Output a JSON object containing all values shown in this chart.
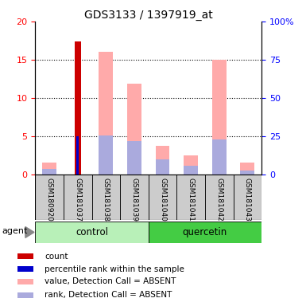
{
  "title": "GDS3133 / 1397919_at",
  "samples": [
    "GSM180920",
    "GSM181037",
    "GSM181038",
    "GSM181039",
    "GSM181040",
    "GSM181041",
    "GSM181042",
    "GSM181043"
  ],
  "count_values": [
    0,
    17.4,
    0,
    0,
    0,
    0,
    0,
    0
  ],
  "percentile_rank_values": [
    0,
    5.0,
    0,
    0,
    0,
    0,
    0,
    0
  ],
  "absent_value_bars": [
    1.6,
    0,
    16.0,
    11.9,
    3.7,
    2.5,
    15.0,
    1.5
  ],
  "absent_rank_bars": [
    0.7,
    0,
    5.1,
    4.4,
    2.0,
    1.1,
    4.6,
    0.5
  ],
  "ylim": [
    0,
    20
  ],
  "y2lim": [
    0,
    100
  ],
  "yticks": [
    0,
    5,
    10,
    15,
    20
  ],
  "y2ticks": [
    0,
    25,
    50,
    75,
    100
  ],
  "y2ticklabels": [
    "0",
    "25",
    "50",
    "75",
    "100%"
  ],
  "color_count": "#cc0000",
  "color_rank": "#0000cc",
  "color_absent_value": "#ffaaaa",
  "color_absent_rank": "#aaaadd",
  "bar_width": 0.5,
  "control_color_light": "#b8f0b8",
  "control_color": "#90ee90",
  "quercetin_color": "#44cc44",
  "sample_box_color": "#cccccc",
  "legend_items": [
    [
      "#cc0000",
      "count"
    ],
    [
      "#0000cc",
      "percentile rank within the sample"
    ],
    [
      "#ffaaaa",
      "value, Detection Call = ABSENT"
    ],
    [
      "#aaaadd",
      "rank, Detection Call = ABSENT"
    ]
  ]
}
